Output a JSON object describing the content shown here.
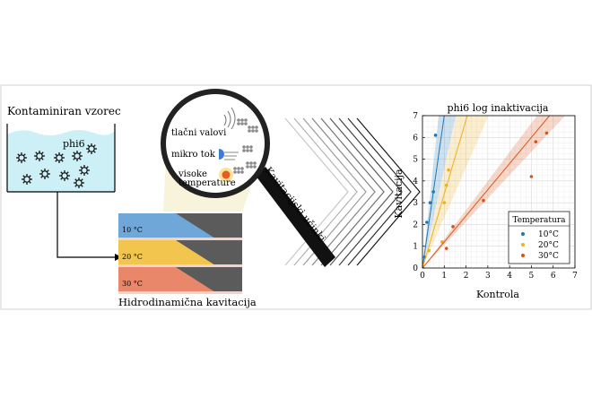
{
  "contaminated": {
    "title": "Kontaminiran vzorec",
    "virus_label": "phi6"
  },
  "process": {
    "caption": "Hidrodinamična kavitacija",
    "strips": [
      {
        "label": "10 °C",
        "color": "#6fa8d8"
      },
      {
        "label": "20 °C",
        "color": "#f2c64e"
      },
      {
        "label": "30 °C",
        "color": "#e8876a"
      }
    ]
  },
  "magnifier": {
    "effects": [
      "tlačni valovi",
      "mikro tok",
      "visoke",
      "temperature"
    ],
    "handle_label": "Kavitacijski učinki"
  },
  "chart_data": {
    "type": "scatter",
    "title": "phi6 log inaktivacija",
    "xlabel": "Kontrola",
    "ylabel": "Kavitacija",
    "xlim": [
      0,
      7
    ],
    "ylim": [
      0,
      7
    ],
    "xticks": [
      "0",
      "1",
      "2",
      "3",
      "4",
      "5",
      "6",
      "7"
    ],
    "yticks": [
      "0",
      "1",
      "2",
      "3",
      "4",
      "5",
      "6",
      "7"
    ],
    "grid": true,
    "legend": {
      "title": "Temperatura",
      "placement": "bottom-right"
    },
    "series": [
      {
        "name": "10°C",
        "color": "#1f77b4",
        "slope": 7.0,
        "band": 1.0,
        "x": [
          0.1,
          0.2,
          0.35,
          0.5,
          0.6
        ],
        "y": [
          0.5,
          2.1,
          3.0,
          3.5,
          6.1
        ]
      },
      {
        "name": "20°C",
        "color": "#edb120",
        "slope": 3.4,
        "band": 0.9,
        "x": [
          0.3,
          0.9,
          1.0,
          1.1,
          1.2
        ],
        "y": [
          0.8,
          1.2,
          3.0,
          3.8,
          4.5
        ]
      },
      {
        "name": "30°C",
        "color": "#d95319",
        "slope": 1.2,
        "band": 0.2,
        "x": [
          1.1,
          1.4,
          2.8,
          5.0,
          5.2,
          5.7
        ],
        "y": [
          0.9,
          1.9,
          3.1,
          4.2,
          5.8,
          6.2
        ]
      }
    ]
  }
}
